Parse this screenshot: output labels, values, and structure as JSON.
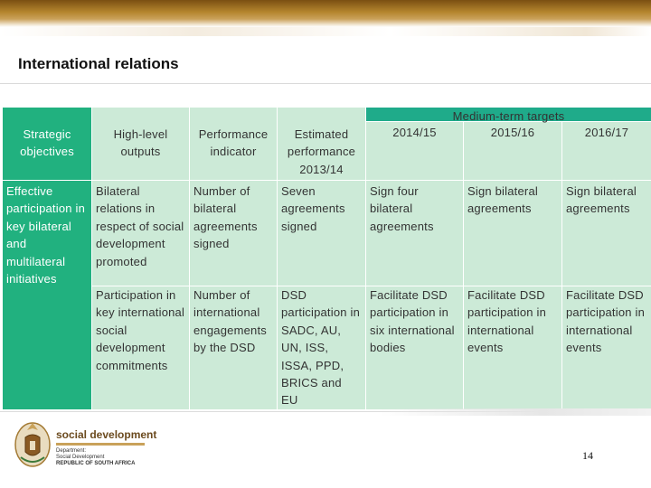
{
  "slide": {
    "title": "International relations",
    "page_number": "14"
  },
  "table": {
    "span_header": "Medium-term targets",
    "columns": [
      "Strategic objectives",
      "High-level outputs",
      "Performance indicator",
      "Estimated performance 2013/14",
      "2014/15",
      "2015/16",
      "2016/17"
    ],
    "rows": [
      [
        "Effective participation in key bilateral and multilateral initiatives",
        "Bilateral relations in respect of social development promoted",
        "Number of bilateral agreements signed",
        "Seven agreements signed",
        "Sign four bilateral agreements",
        "Sign bilateral agreements",
        "Sign bilateral agreements"
      ],
      [
        "",
        "Participation in key international social development commitments",
        "Number of international engagements by the DSD",
        "DSD participation in SADC, AU, UN, ISS, ISSA, PPD, BRICS and EU",
        "Facilitate DSD participation in six international bodies",
        "Facilitate DSD participation in international events",
        "Facilitate DSD participation in international events"
      ]
    ]
  },
  "logo": {
    "name": "social development",
    "line1": "Department:",
    "line2": "Social Development",
    "line3": "REPUBLIC OF SOUTH AFRICA"
  },
  "colors": {
    "header_teal": "#1fab8a",
    "cell_mint": "#ccead7",
    "first_column_green": "#21b17f",
    "brand_brown": "#7a4f12"
  }
}
